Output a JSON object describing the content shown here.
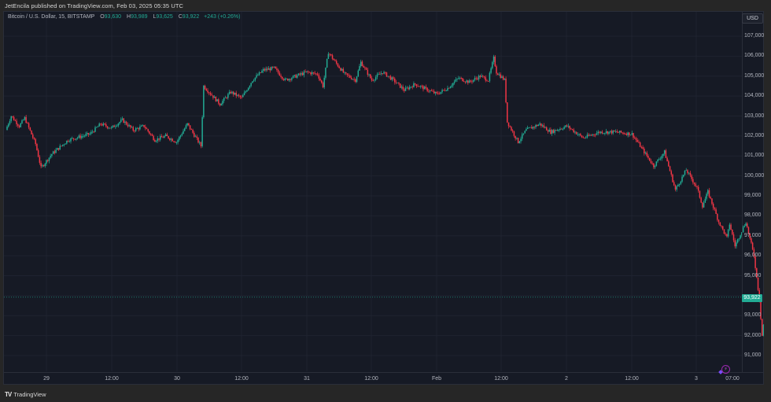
{
  "publisher_line": "JetEncila published on TradingView.com, Feb 03, 2025 05:35 UTC",
  "legend": {
    "symbol": "Bitcoin / U.S. Dollar, 15, BITSTAMP",
    "o_label": "O",
    "o_value": "93,630",
    "h_label": "H",
    "h_value": "93,989",
    "l_label": "L",
    "l_value": "93,625",
    "c_label": "C",
    "c_value": "93,922",
    "change": "+243 (+0.26%)"
  },
  "currency_button": "USD",
  "last_price_tag": "93,922",
  "branding": "TradingView",
  "colors": {
    "background": "#161a25",
    "grid": "#1f2330",
    "up": "#22ab94",
    "down": "#f23645",
    "axis_text": "#b2b5be",
    "last_price_line": "#22ab94"
  },
  "chart_data": {
    "type": "candlestick",
    "title": "Bitcoin / U.S. Dollar, 15, BITSTAMP",
    "interval": "15m",
    "exchange": "BITSTAMP",
    "xlabel": "",
    "ylabel": "USD",
    "ylim": [
      90500,
      107500
    ],
    "grid": true,
    "y_ticks": [
      "107,000",
      "106,000",
      "105,000",
      "104,000",
      "103,000",
      "102,000",
      "101,000",
      "100,000",
      "99,000",
      "98,000",
      "97,000",
      "96,000",
      "95,000",
      "93,000",
      "92,000",
      "91,000"
    ],
    "x_ticks": [
      "29",
      "12:00",
      "30",
      "12:00",
      "31",
      "12:00",
      "Feb",
      "12:00",
      "2",
      "12:00",
      "3",
      "07:00"
    ],
    "last": {
      "open": 93630,
      "high": 93989,
      "low": 93625,
      "close": 93922,
      "change": 243,
      "change_pct": 0.26
    },
    "approx_path_note": "Approximate close path (time label, price) read from axis",
    "path": [
      [
        "Jan 28 16:30",
        102300
      ],
      [
        "Jan 28 17:30",
        103000
      ],
      [
        "Jan 28 19:00",
        102500
      ],
      [
        "Jan 28 20:00",
        102900
      ],
      [
        "Jan 28 22:00",
        101600
      ],
      [
        "Jan 28 23:00",
        100400
      ],
      [
        "Jan 29 01:00",
        101100
      ],
      [
        "Jan 29 04:00",
        101800
      ],
      [
        "Jan 29 08:00",
        102100
      ],
      [
        "Jan 29 10:00",
        102600
      ],
      [
        "Jan 29 12:00",
        102400
      ],
      [
        "Jan 29 14:00",
        102800
      ],
      [
        "Jan 29 16:00",
        102300
      ],
      [
        "Jan 29 18:00",
        102500
      ],
      [
        "Jan 29 20:00",
        101800
      ],
      [
        "Jan 29 22:00",
        102000
      ],
      [
        "Jan 30 00:00",
        101700
      ],
      [
        "Jan 30 02:00",
        102600
      ],
      [
        "Jan 30 04:30",
        101500
      ],
      [
        "Jan 30 05:00",
        104500
      ],
      [
        "Jan 30 06:00",
        104200
      ],
      [
        "Jan 30 08:00",
        103600
      ],
      [
        "Jan 30 10:00",
        104200
      ],
      [
        "Jan 30 12:00",
        103900
      ],
      [
        "Jan 30 14:00",
        104800
      ],
      [
        "Jan 30 16:00",
        105300
      ],
      [
        "Jan 30 18:00",
        105400
      ],
      [
        "Jan 30 20:00",
        104800
      ],
      [
        "Jan 31 00:00",
        105200
      ],
      [
        "Jan 31 02:00",
        105100
      ],
      [
        "Jan 31 03:00",
        104500
      ],
      [
        "Jan 31 04:00",
        106200
      ],
      [
        "Jan 31 05:00",
        105800
      ],
      [
        "Jan 31 07:00",
        105100
      ],
      [
        "Jan 31 09:00",
        104800
      ],
      [
        "Jan 31 10:00",
        105700
      ],
      [
        "Jan 31 12:00",
        104800
      ],
      [
        "Jan 31 14:00",
        105200
      ],
      [
        "Jan 31 16:00",
        104800
      ],
      [
        "Jan 31 18:00",
        104300
      ],
      [
        "Jan 31 20:00",
        104600
      ],
      [
        "Feb 1 00:00",
        104100
      ],
      [
        "Feb 1 02:00",
        104400
      ],
      [
        "Feb 1 04:00",
        104900
      ],
      [
        "Feb 1 06:00",
        104700
      ],
      [
        "Feb 1 08:00",
        105000
      ],
      [
        "Feb 1 09:30",
        104800
      ],
      [
        "Feb 1 10:30",
        105900
      ],
      [
        "Feb 1 11:00",
        105200
      ],
      [
        "Feb 1 12:30",
        104800
      ],
      [
        "Feb 1 13:00",
        102700
      ],
      [
        "Feb 1 15:00",
        101700
      ],
      [
        "Feb 1 16:30",
        102300
      ],
      [
        "Feb 1 19:00",
        102600
      ],
      [
        "Feb 1 21:00",
        102200
      ],
      [
        "Feb 2 00:00",
        102500
      ],
      [
        "Feb 2 03:00",
        101900
      ],
      [
        "Feb 2 06:00",
        102200
      ],
      [
        "Feb 2 09:00",
        102200
      ],
      [
        "Feb 2 12:00",
        102100
      ],
      [
        "Feb 2 14:00",
        101300
      ],
      [
        "Feb 2 16:00",
        100500
      ],
      [
        "Feb 2 18:00",
        101200
      ],
      [
        "Feb 2 20:00",
        99300
      ],
      [
        "Feb 2 22:00",
        100300
      ],
      [
        "Feb 3 00:00",
        99400
      ],
      [
        "Feb 3 01:00",
        98500
      ],
      [
        "Feb 3 02:00",
        99200
      ],
      [
        "Feb 3 04:00",
        97700
      ],
      [
        "Feb 3 05:30",
        96900
      ],
      [
        "Feb 3 06:00",
        97600
      ],
      [
        "Feb 3 07:00",
        96500
      ],
      [
        "Feb 3 09:00",
        97700
      ],
      [
        "Feb 3 10:30",
        96000
      ],
      [
        "Feb 3 11:30",
        93800
      ],
      [
        "Feb 3 12:00",
        92000
      ],
      [
        "Feb 3 13:00",
        94200
      ],
      [
        "Feb 3 14:00",
        93600
      ],
      [
        "Feb 3 15:30",
        92800
      ],
      [
        "Feb 3 16:30",
        93922
      ]
    ]
  }
}
